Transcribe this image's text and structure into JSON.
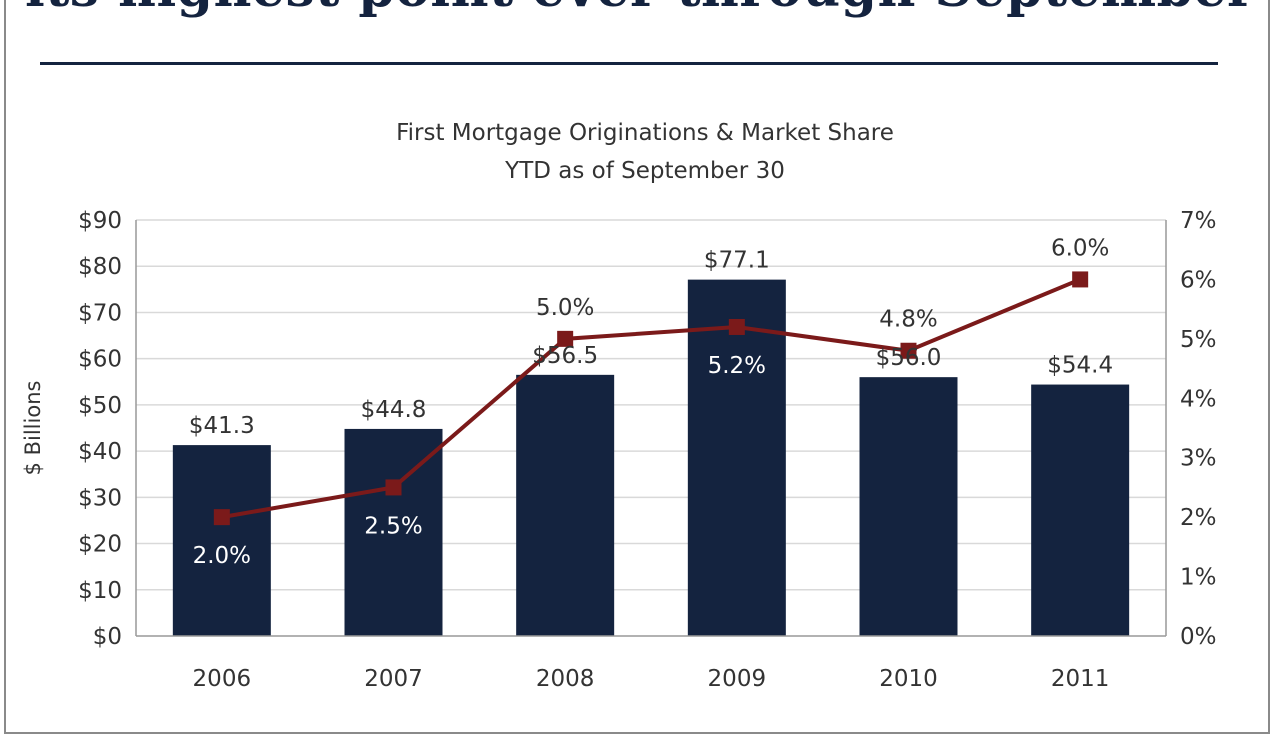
{
  "slide": {
    "headline": "its highest point ever through September"
  },
  "colors": {
    "bar": "#14233f",
    "line": "#7b1a1a",
    "grid": "#d9d9d9",
    "axis": "#999999",
    "text": "#333333",
    "inside_label": "#ffffff"
  },
  "chart_data": {
    "type": "bar",
    "title": [
      "First Mortgage Originations & Market Share",
      "YTD as of September 30"
    ],
    "ylabel": "$ Billions",
    "y2label": "",
    "categories": [
      "2006",
      "2007",
      "2008",
      "2009",
      "2010",
      "2011"
    ],
    "ylim": [
      0,
      90
    ],
    "y_ticks": [
      "$0",
      "$10",
      "$20",
      "$30",
      "$40",
      "$50",
      "$60",
      "$70",
      "$80",
      "$90"
    ],
    "y2lim": [
      0,
      7
    ],
    "y2_ticks": [
      "0%",
      "1%",
      "2%",
      "3%",
      "4%",
      "5%",
      "6%",
      "7%"
    ],
    "grid": true,
    "series": [
      {
        "type": "bar",
        "axis": "left",
        "values": [
          41.3,
          44.8,
          56.5,
          77.1,
          56.0,
          54.4
        ],
        "labels": [
          "$41.3",
          "$44.8",
          "$56.5",
          "$77.1",
          "$56.0",
          "$54.4"
        ]
      },
      {
        "type": "line",
        "axis": "right",
        "marker": "square",
        "values": [
          2.0,
          2.5,
          5.0,
          5.2,
          4.8,
          6.0
        ],
        "labels": [
          "2.0%",
          "2.5%",
          "5.0%",
          "5.2%",
          "4.8%",
          "6.0%"
        ]
      }
    ]
  }
}
